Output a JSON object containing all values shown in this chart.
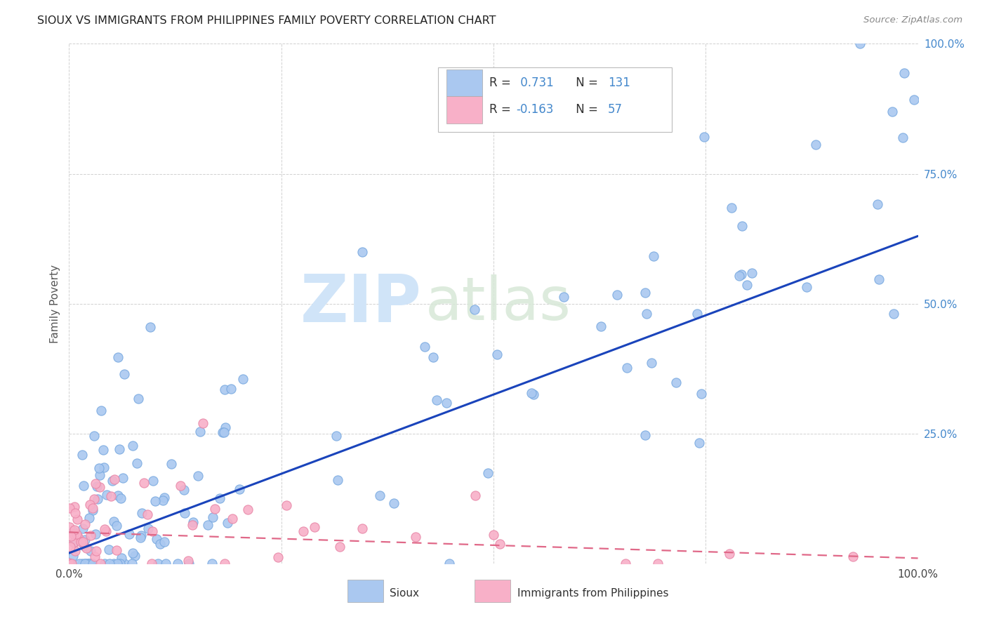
{
  "title": "SIOUX VS IMMIGRANTS FROM PHILIPPINES FAMILY POVERTY CORRELATION CHART",
  "source": "Source: ZipAtlas.com",
  "ylabel": "Family Poverty",
  "xlim": [
    0,
    1
  ],
  "ylim": [
    0,
    1
  ],
  "legend_r1": "0.731",
  "legend_n1": "131",
  "legend_r2": "-0.163",
  "legend_n2": "57",
  "legend_label1": "Sioux",
  "legend_label2": "Immigrants from Philippines",
  "sioux_color": "#aac8f0",
  "sioux_edge_color": "#7aaae0",
  "sioux_line_color": "#1a44bb",
  "philippines_color": "#f8b0c8",
  "philippines_edge_color": "#e888a8",
  "philippines_line_color": "#e06888",
  "watermark_zip": "ZIP",
  "watermark_atlas": "atlas",
  "background_color": "#ffffff",
  "grid_color": "#cccccc",
  "sioux_line_y0": 0.02,
  "sioux_line_y1": 0.63,
  "phil_line_y0": 0.06,
  "phil_line_y1": 0.01
}
